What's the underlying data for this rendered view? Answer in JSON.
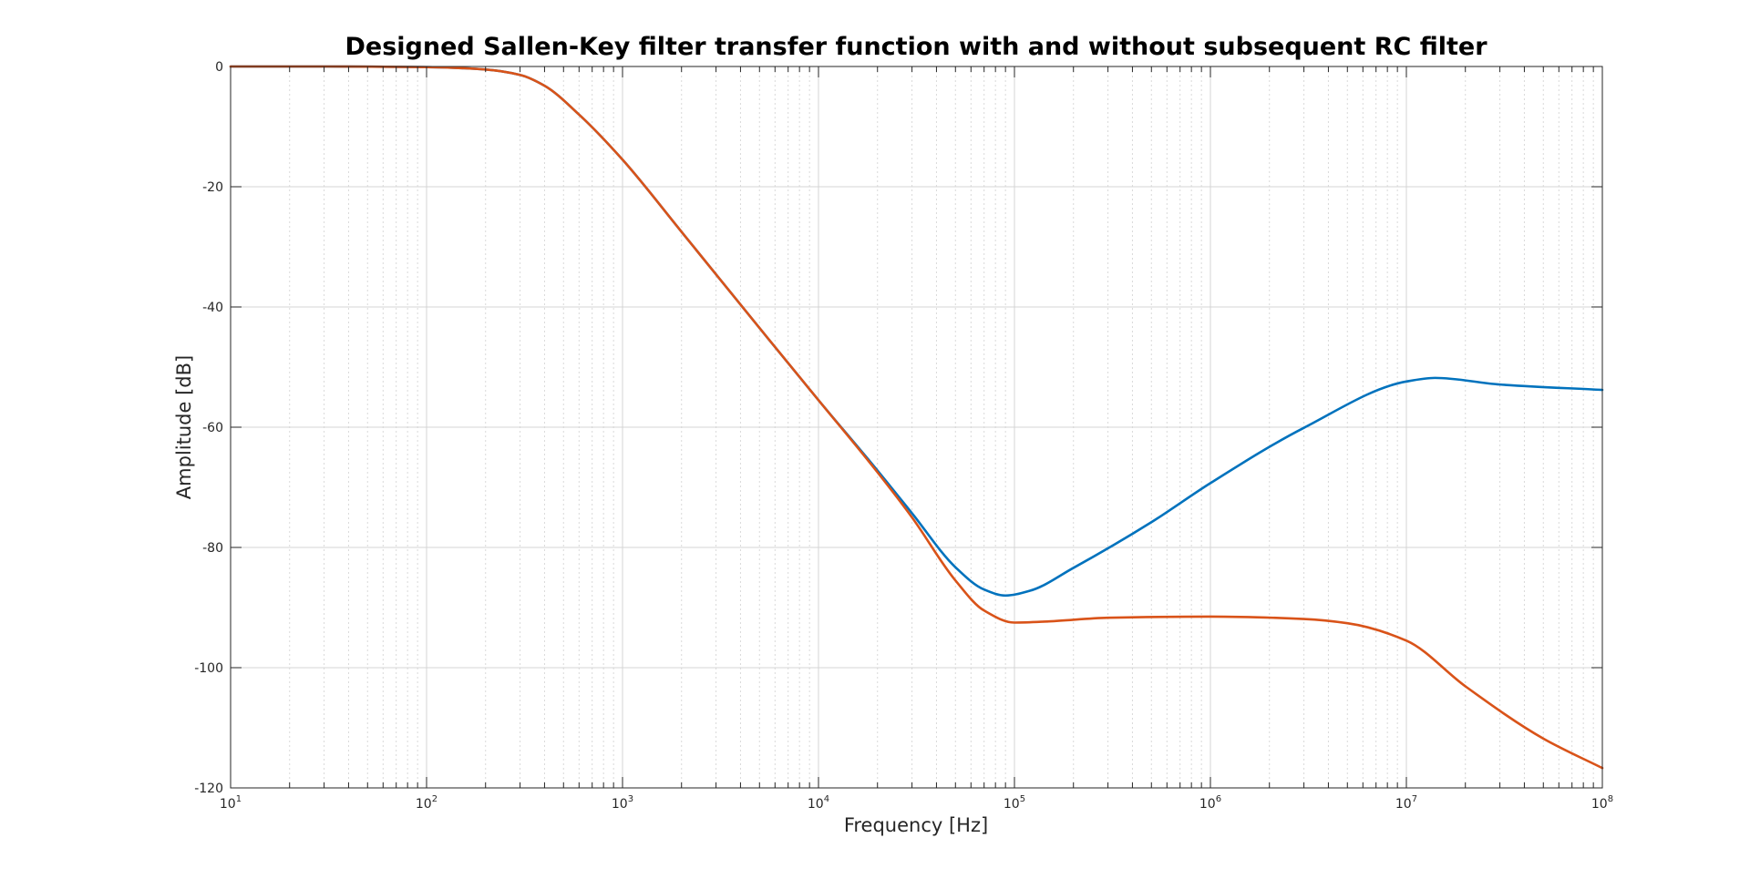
{
  "chart_data": {
    "type": "line",
    "title": "Designed Sallen-Key filter transfer function with and without subsequent RC filter",
    "xlabel": "Frequency [Hz]",
    "ylabel": "Amplitude [dB]",
    "xscale": "log",
    "xlim": [
      10,
      100000000
    ],
    "ylim": [
      -120,
      0
    ],
    "grid": true,
    "minor_grid": true,
    "legend": "none",
    "x_ticks": [
      {
        "base": "10",
        "exp": "1"
      },
      {
        "base": "10",
        "exp": "2"
      },
      {
        "base": "10",
        "exp": "3"
      },
      {
        "base": "10",
        "exp": "4"
      },
      {
        "base": "10",
        "exp": "5"
      },
      {
        "base": "10",
        "exp": "6"
      },
      {
        "base": "10",
        "exp": "7"
      },
      {
        "base": "10",
        "exp": "8"
      }
    ],
    "y_ticks": [
      "0",
      "-20",
      "-40",
      "-60",
      "-80",
      "-100",
      "-120"
    ],
    "series": [
      {
        "color": "#0072BD",
        "x": [
          10,
          31.6,
          100,
          200,
          300,
          400,
          600,
          1000,
          2000,
          5000,
          10000,
          20000,
          30000,
          50000,
          70000,
          90000,
          120000,
          200000,
          500000,
          1000000,
          3000000,
          10000000,
          14000000,
          30000000,
          100000000
        ],
        "y": [
          0,
          0,
          -0.1,
          -0.5,
          -1.4,
          -3.2,
          -8,
          -15.5,
          -27.5,
          -43.5,
          -55.5,
          -67.2,
          -74.3,
          -83.3,
          -87,
          -88,
          -87.2,
          -83.4,
          -75.8,
          -69.3,
          -60.1,
          -52.4,
          -51.8,
          -52.9,
          -53.8
        ]
      },
      {
        "color": "#D95319",
        "x": [
          10,
          31.6,
          100,
          200,
          300,
          400,
          600,
          1000,
          2000,
          5000,
          10000,
          20000,
          30000,
          50000,
          70000,
          100000,
          150000,
          300000,
          1000000,
          3000000,
          5000000,
          10000000,
          20000000,
          50000000,
          100000000
        ],
        "y": [
          0,
          0,
          -0.1,
          -0.5,
          -1.4,
          -3.2,
          -8,
          -15.5,
          -27.5,
          -43.5,
          -55.5,
          -67.5,
          -75,
          -85.5,
          -90.5,
          -92.5,
          -92.3,
          -91.7,
          -91.5,
          -91.9,
          -92.6,
          -95.5,
          -103.1,
          -111.8,
          -116.7
        ]
      }
    ]
  }
}
